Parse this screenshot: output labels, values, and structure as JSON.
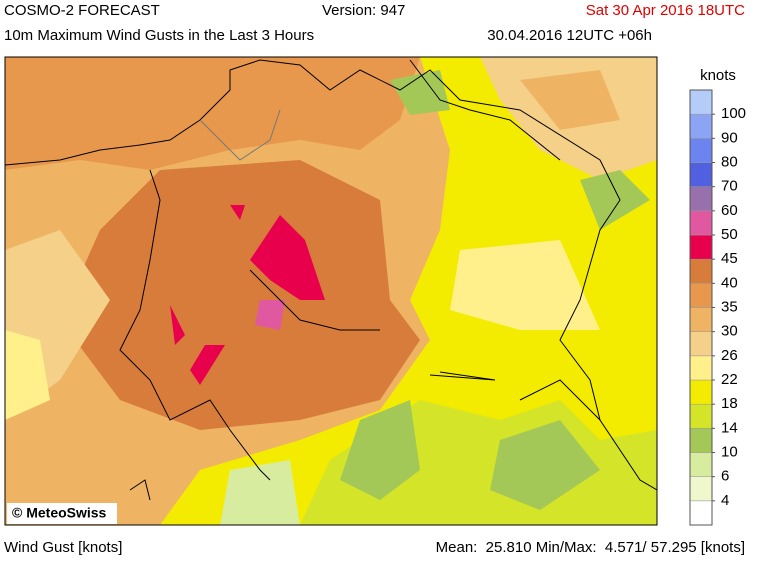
{
  "header": {
    "product": "COSMO-2 FORECAST",
    "version": "Version: 947",
    "valid_time": "Sat 30 Apr 2016 18UTC",
    "parameter": "10m Maximum Wind Gusts in the Last 3 Hours",
    "run": "30.04.2016 12UTC +06h"
  },
  "map": {
    "copyright": "© MeteoSwiss"
  },
  "colorbar": {
    "unit": "knots",
    "ticks": [
      4,
      6,
      10,
      14,
      18,
      22,
      26,
      30,
      35,
      40,
      45,
      50,
      60,
      70,
      80,
      90,
      100
    ],
    "colors": [
      "#ffffff",
      "#eef8cc",
      "#d8eca0",
      "#a4c858",
      "#d4e428",
      "#f4ec00",
      "#fff08c",
      "#f4d088",
      "#eeb464",
      "#e8984c",
      "#d87c3c",
      "#e8004c",
      "#e058a0",
      "#9870ac",
      "#5060e0",
      "#6c84f0",
      "#8ca4f4",
      "#b4ccf8"
    ]
  },
  "footer": {
    "parameter": "Wind Gust [knots]",
    "stats": "Mean:  25.810 Min/Max:  4.571/ 57.295 [knots]"
  }
}
